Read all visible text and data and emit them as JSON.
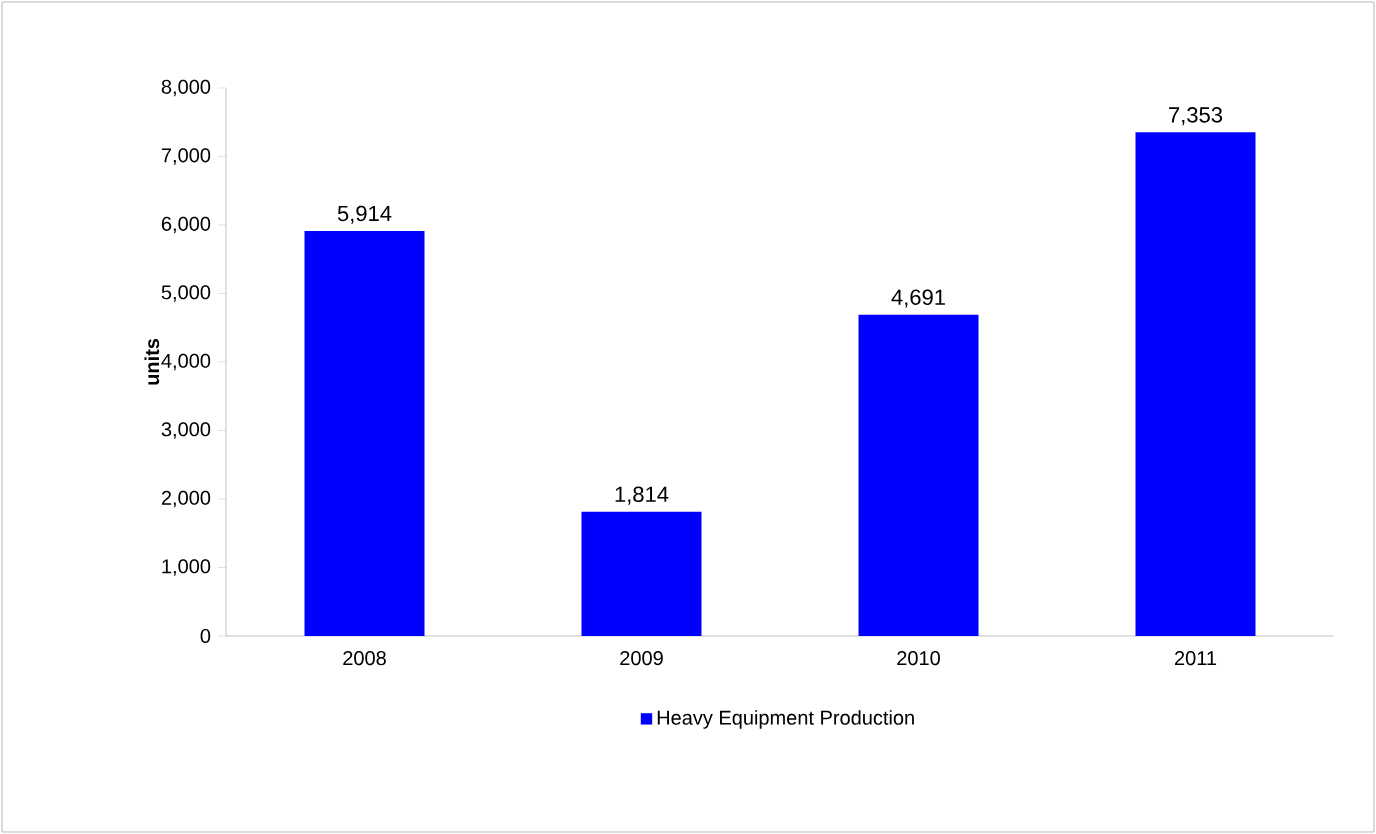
{
  "chart_data": {
    "type": "bar",
    "ylabel": "units",
    "categories": [
      "2008",
      "2009",
      "2010",
      "2011"
    ],
    "series": [
      {
        "name": "Heavy Equipment Production",
        "color": "#0000ff",
        "values": [
          5914,
          1814,
          4691,
          7353
        ],
        "value_labels": [
          "5,914",
          "1,814",
          "4,691",
          "7,353"
        ]
      }
    ],
    "ylim": [
      0,
      8000
    ],
    "yticks": [
      {
        "value": 0,
        "label": "0"
      },
      {
        "value": 1000,
        "label": "1,000"
      },
      {
        "value": 2000,
        "label": "2,000"
      },
      {
        "value": 3000,
        "label": "3,000"
      },
      {
        "value": 4000,
        "label": "4,000"
      },
      {
        "value": 5000,
        "label": "5,000"
      },
      {
        "value": 6000,
        "label": "6,000"
      },
      {
        "value": 7000,
        "label": "7,000"
      },
      {
        "value": 8000,
        "label": "8,000"
      }
    ],
    "grid": false,
    "legend": "bottom"
  }
}
